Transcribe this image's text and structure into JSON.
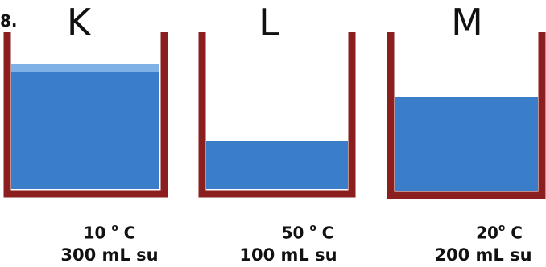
{
  "question_number": "8.",
  "colors": {
    "wall": "#8b1e1e",
    "water": "#3a7dc9",
    "water_surface": "#7fb0e6"
  },
  "beakers": [
    {
      "id": "K",
      "label": "K",
      "temp_value": "10",
      "temp_degree": "o",
      "temp_unit": "C",
      "volume": "300 mL su",
      "volume_ml": 300
    },
    {
      "id": "L",
      "label": "L",
      "temp_value": "50",
      "temp_degree": "o",
      "temp_unit": "C",
      "volume": "100 mL su",
      "volume_ml": 100
    },
    {
      "id": "M",
      "label": "M",
      "temp_value": "20",
      "temp_degree": "o",
      "temp_unit": "C",
      "volume": "200 mL su",
      "volume_ml": 200
    }
  ]
}
